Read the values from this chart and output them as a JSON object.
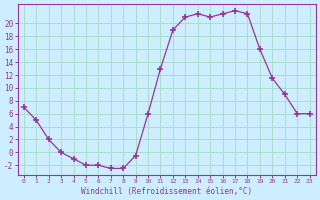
{
  "x": [
    0,
    1,
    2,
    3,
    4,
    5,
    6,
    7,
    8,
    9,
    10,
    11,
    12,
    13,
    14,
    15,
    16,
    17,
    18,
    19,
    20,
    21,
    22,
    23
  ],
  "y": [
    7,
    5,
    2,
    0,
    -1,
    -2,
    -2.0,
    -2.5,
    -2.5,
    -0.5,
    6,
    13,
    19,
    21,
    21.5,
    21,
    21.5,
    22,
    21.5,
    16,
    11.5,
    9,
    6,
    6
  ],
  "line_color": "#993399",
  "marker": "+",
  "marker_size": 4,
  "bg_color": "#cceeff",
  "grid_color": "#aaddcc",
  "xlabel": "Windchill (Refroidissement éolien,°C)",
  "xlabel_color": "#993399",
  "ylabel_ticks": [
    -2,
    0,
    2,
    4,
    6,
    8,
    10,
    12,
    14,
    16,
    18,
    20
  ],
  "ylim": [
    -3.5,
    23
  ],
  "xlim": [
    -0.5,
    23.5
  ]
}
